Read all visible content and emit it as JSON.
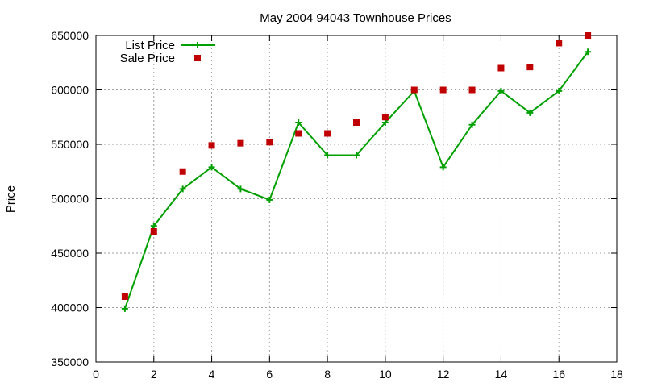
{
  "chart_data": {
    "type": "line",
    "title": "May 2004 94043 Townhouse Prices",
    "xlabel": "",
    "ylabel": "Price",
    "xlim": [
      0,
      18
    ],
    "ylim": [
      350000,
      650000
    ],
    "x_ticks": [
      0,
      2,
      4,
      6,
      8,
      10,
      12,
      14,
      16,
      18
    ],
    "y_ticks": [
      350000,
      400000,
      450000,
      500000,
      550000,
      600000,
      650000
    ],
    "grid": true,
    "legend_position": "top-left",
    "series": [
      {
        "name": "List Price",
        "style": "line-with-plus-markers",
        "color": "#00a000",
        "x": [
          1,
          2,
          3,
          4,
          5,
          6,
          7,
          8,
          9,
          10,
          11,
          12,
          13,
          14,
          15,
          16,
          17
        ],
        "values": [
          399000,
          475000,
          509000,
          529000,
          509000,
          499000,
          570000,
          540000,
          540000,
          570000,
          599000,
          529000,
          568000,
          599000,
          579000,
          599000,
          635000
        ]
      },
      {
        "name": "Sale Price",
        "style": "square-markers",
        "color": "#c00000",
        "x": [
          1,
          2,
          3,
          4,
          5,
          6,
          7,
          8,
          9,
          10,
          11,
          12,
          13,
          14,
          15,
          16,
          17
        ],
        "values": [
          410000,
          470000,
          525000,
          549000,
          551000,
          552000,
          560000,
          560000,
          570000,
          575000,
          600000,
          600000,
          600000,
          620000,
          621000,
          643000,
          650000
        ]
      }
    ]
  }
}
